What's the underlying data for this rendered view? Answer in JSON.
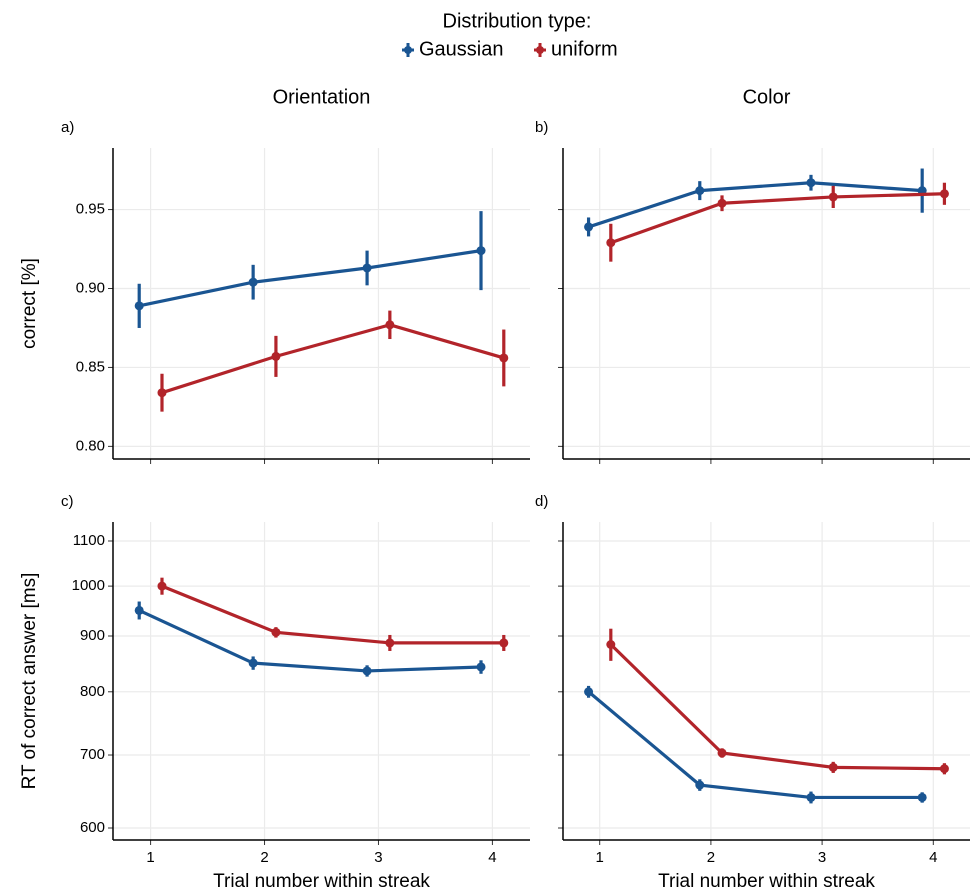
{
  "legend": {
    "title": "Distribution type:",
    "entries": [
      {
        "name": "Gaussian",
        "color": "#1a5592"
      },
      {
        "name": "uniform",
        "color": "#b2242a"
      }
    ]
  },
  "chart_data": [
    {
      "type": "line",
      "panel_label": "a)",
      "column_title": "Orientation",
      "ylabel": "correct [%]",
      "x": [
        1,
        2,
        3,
        4
      ],
      "xlim": [
        0.67,
        4.33
      ],
      "xticks": [
        1,
        2,
        3,
        4
      ],
      "ylim": [
        0.792,
        0.989
      ],
      "yticks": [
        {
          "value": 0.8,
          "label": "0.80"
        },
        0.85,
        {
          "value": 0.9,
          "label": "0.90"
        },
        0.95
      ],
      "grid": true,
      "series": [
        {
          "values": [
            0.889,
            0.904,
            0.913,
            0.924
          ],
          "errors": [
            0.014,
            0.011,
            0.011,
            0.025
          ]
        },
        {
          "values": [
            0.834,
            0.857,
            0.877,
            0.856
          ],
          "errors": [
            0.012,
            0.013,
            0.009,
            0.018
          ]
        }
      ]
    },
    {
      "type": "line",
      "panel_label": "b)",
      "column_title": "Color",
      "x": [
        1,
        2,
        3,
        4
      ],
      "xlim": [
        0.67,
        4.33
      ],
      "xticks": [
        1,
        2,
        3,
        4
      ],
      "ylim": [
        0.792,
        0.989
      ],
      "yticks": [
        0.8,
        0.85,
        0.9,
        0.95
      ],
      "grid": true,
      "series": [
        {
          "values": [
            0.939,
            0.962,
            0.967,
            0.962
          ],
          "errors": [
            0.006,
            0.006,
            0.005,
            0.014
          ]
        },
        {
          "values": [
            0.929,
            0.954,
            0.958,
            0.96
          ],
          "errors": [
            0.012,
            0.005,
            0.007,
            0.007
          ]
        }
      ]
    },
    {
      "type": "line",
      "panel_label": "c)",
      "ylabel": "RT of correct answer [ms]",
      "xlabel": "Trial number within streak",
      "x": [
        1,
        2,
        3,
        4
      ],
      "xlim": [
        0.67,
        4.33
      ],
      "xticks": [
        1,
        2,
        3,
        4
      ],
      "ylim": [
        585,
        1145
      ],
      "yticks": [
        600,
        700,
        800,
        900,
        1000,
        1100
      ],
      "log_y": true,
      "grid": true,
      "series": [
        {
          "values": [
            950,
            850,
            836,
            843
          ],
          "errors": [
            18,
            12,
            10,
            12
          ]
        },
        {
          "values": [
            1000,
            907,
            887,
            887
          ],
          "errors": [
            18,
            10,
            15,
            15
          ]
        }
      ]
    },
    {
      "type": "line",
      "panel_label": "d)",
      "xlabel": "Trial number within streak",
      "x": [
        1,
        2,
        3,
        4
      ],
      "xlim": [
        0.67,
        4.33
      ],
      "xticks": [
        1,
        2,
        3,
        4
      ],
      "ylim": [
        585,
        1145
      ],
      "yticks": [
        600,
        700,
        800,
        900,
        1000,
        1100
      ],
      "log_y": true,
      "grid": true,
      "series": [
        {
          "values": [
            800,
            657,
            640,
            640
          ],
          "errors": [
            10,
            8,
            8,
            7
          ]
        },
        {
          "values": [
            884,
            703,
            682,
            680
          ],
          "errors": [
            30,
            7,
            8,
            8
          ]
        }
      ]
    }
  ]
}
